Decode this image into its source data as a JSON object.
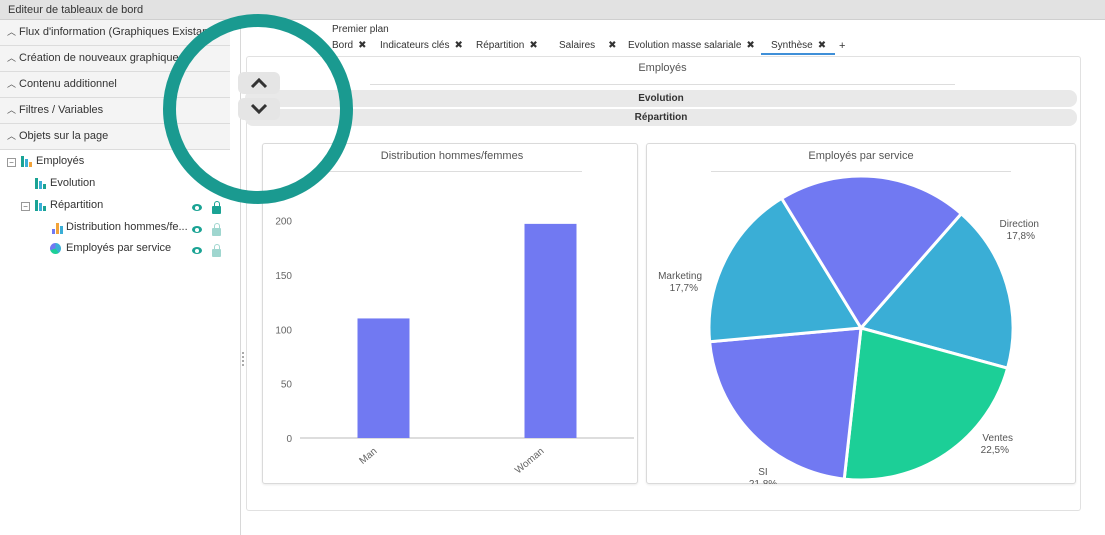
{
  "window": {
    "title": "Editeur de tableaux de bord"
  },
  "sidebar": {
    "sections": [
      {
        "label": "Flux d'information (Graphiques Existants)"
      },
      {
        "label": "Création de nouveaux graphiques"
      },
      {
        "label": "Contenu additionnel"
      },
      {
        "label": "Filtres / Variables"
      },
      {
        "label": "Objets sur la page"
      }
    ],
    "tree": {
      "root": {
        "label": "Employés",
        "toggle": "−"
      },
      "evolution": {
        "label": "Evolution"
      },
      "repartition": {
        "label": "Répartition",
        "toggle": "−"
      },
      "distribution": {
        "label": "Distribution hommes/fe..."
      },
      "employes_service": {
        "label": "Employés par service"
      }
    }
  },
  "header": {
    "layer_label": "Premier plan",
    "tabs": [
      {
        "label": "Bord",
        "active": false
      },
      {
        "label": "Indicateurs clés",
        "active": false
      },
      {
        "label": "Répartition",
        "active": false
      },
      {
        "label": "Salaires",
        "active": false
      },
      {
        "label": "Evolution masse salariale",
        "active": false
      },
      {
        "label": "Synthèse",
        "active": true
      }
    ],
    "add_tab": "+",
    "close_glyph": "✖"
  },
  "main": {
    "title": "Employés",
    "sections": [
      {
        "label": "Evolution"
      },
      {
        "label": "Répartition"
      }
    ]
  },
  "colors": {
    "accent": "#1a9a90",
    "bar": "#7179f2",
    "pie": [
      "#3aaed6",
      "#1ccf97",
      "#7179f2",
      "#3aaed6",
      "#7179f2"
    ]
  },
  "chart_data": [
    {
      "type": "bar",
      "title": "Distribution hommes/femmes",
      "categories": [
        "Man",
        "Woman"
      ],
      "values": [
        110,
        197
      ],
      "yticks": [
        0,
        50,
        100,
        150,
        200
      ],
      "ylim": [
        0,
        230
      ],
      "xlabel": "",
      "ylabel": ""
    },
    {
      "type": "pie",
      "title": "Employés par service",
      "slices": [
        {
          "label": "Direction",
          "value": 17.8,
          "display": "17,8%"
        },
        {
          "label": "Ventes",
          "value": 22.5,
          "display": "22,5%"
        },
        {
          "label": "SI",
          "value": 21.8,
          "display": "21,8%"
        },
        {
          "label": "Marketing",
          "value": 17.7,
          "display": "17,7%"
        },
        {
          "label": "",
          "value": 20.2,
          "display": ""
        }
      ]
    }
  ]
}
